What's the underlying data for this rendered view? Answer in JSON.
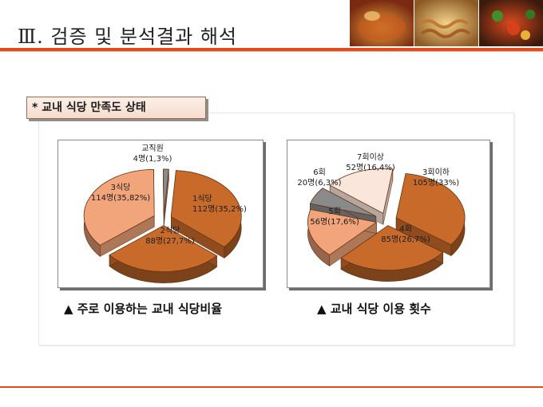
{
  "page": {
    "title": "Ⅲ. 검증 및 분석결과 해석",
    "section_heading": "* 교내 식당 만족도 상태"
  },
  "colors": {
    "accent": "#e34a1e",
    "slice_dark": "#c86a2a",
    "slice_light": "#f2a57a",
    "slice_pale": "#fbe6dc",
    "slice_grey": "#8a8a8a"
  },
  "chart_data": [
    {
      "type": "pie",
      "title": "▲ 주로 이용하는 교내 식당비율",
      "slices": [
        {
          "label": "1식당",
          "value": 112,
          "value_label": "112명(35,2%)",
          "percent": 35.2
        },
        {
          "label": "2식당",
          "value": 88,
          "value_label": "88명(27,7%)",
          "percent": 27.7
        },
        {
          "label": "3식당",
          "value": 114,
          "value_label": "114명(35,82%)",
          "percent": 35.82
        },
        {
          "label": "교직원",
          "value": 4,
          "value_label": "4명(1,3%)",
          "percent": 1.3
        }
      ]
    },
    {
      "type": "pie",
      "title": "▲ 교내 식당 이용 횟수",
      "slices": [
        {
          "label": "3회이하",
          "value": 105,
          "value_label": "105명(33%)",
          "percent": 33
        },
        {
          "label": "4회",
          "value": 85,
          "value_label": "85명(26,7%)",
          "percent": 26.7
        },
        {
          "label": "5회",
          "value": 56,
          "value_label": "56명(17,6%)",
          "percent": 17.6
        },
        {
          "label": "6회",
          "value": 20,
          "value_label": "20명(6,3%)",
          "percent": 6.3
        },
        {
          "label": "7회이상",
          "value": 52,
          "value_label": "52명(16,4%)",
          "percent": 16.4
        }
      ]
    }
  ]
}
